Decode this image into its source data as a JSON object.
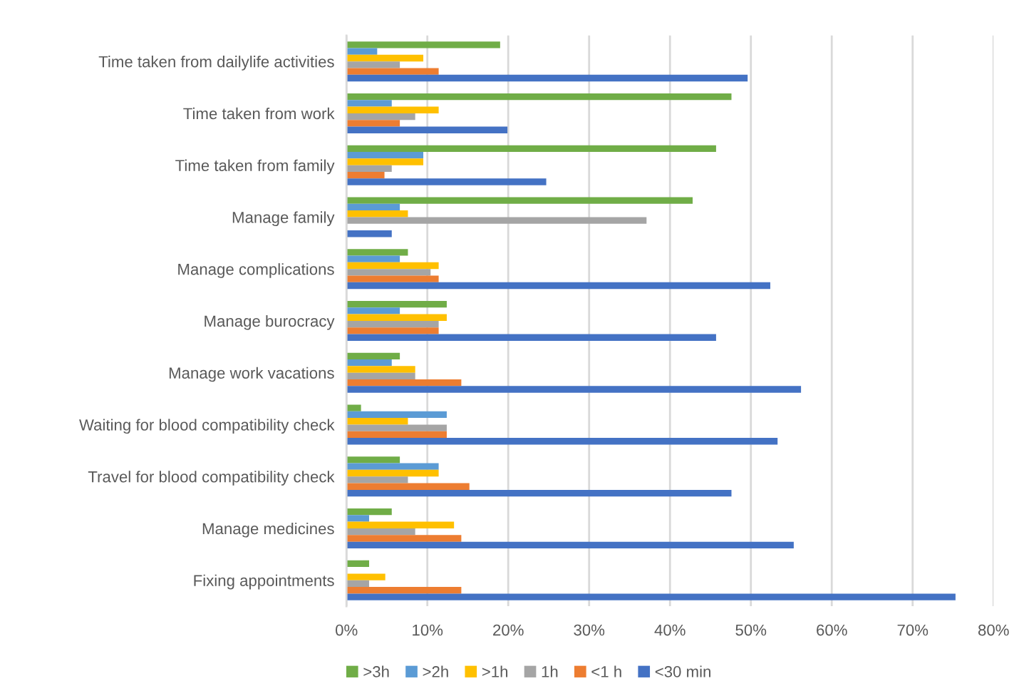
{
  "chart_data": {
    "type": "bar",
    "orientation": "horizontal",
    "categories": [
      "Time taken from dailylife activities",
      "Time taken from work",
      "Time taken from family",
      "Manage family",
      "Manage complications",
      "Manage burocracy",
      "Manage work vacations",
      "Waiting for blood compatibility check",
      "Travel for blood compatibility check",
      "Manage medicines",
      "Fixing appointments"
    ],
    "series": [
      {
        "name": ">3h",
        "color": "#70ad47",
        "values": [
          19.0,
          47.6,
          45.7,
          42.8,
          7.6,
          12.4,
          6.6,
          1.8,
          6.6,
          5.6,
          2.8
        ]
      },
      {
        "name": ">2h",
        "color": "#5b9bd5",
        "values": [
          3.8,
          5.6,
          9.5,
          6.6,
          6.6,
          6.6,
          5.6,
          12.4,
          11.4,
          2.8,
          0
        ]
      },
      {
        "name": ">1h",
        "color": "#ffc000",
        "values": [
          9.5,
          11.4,
          9.5,
          7.6,
          11.4,
          12.4,
          8.5,
          7.6,
          11.4,
          13.3,
          4.8
        ]
      },
      {
        "name": "1h",
        "color": "#a5a5a5",
        "values": [
          6.6,
          8.5,
          5.6,
          37.1,
          10.4,
          11.4,
          8.5,
          12.4,
          7.6,
          8.5,
          2.8
        ]
      },
      {
        "name": "<1 h",
        "color": "#ed7d31",
        "values": [
          11.4,
          6.6,
          4.7,
          0,
          11.4,
          11.4,
          14.2,
          12.4,
          15.2,
          14.2,
          14.2
        ]
      },
      {
        "name": "<30 min",
        "color": "#4472c4",
        "values": [
          49.6,
          19.9,
          24.7,
          5.6,
          52.4,
          45.7,
          56.2,
          53.3,
          47.6,
          55.3,
          75.3
        ]
      }
    ],
    "xlim": [
      0,
      80
    ],
    "xticks": [
      {
        "value": 0,
        "label": "0%"
      },
      {
        "value": 10,
        "label": "10%"
      },
      {
        "value": 20,
        "label": "20%"
      },
      {
        "value": 30,
        "label": "30%"
      },
      {
        "value": 40,
        "label": "40%"
      },
      {
        "value": 50,
        "label": "50%"
      },
      {
        "value": 60,
        "label": "60%"
      },
      {
        "value": 70,
        "label": "70%"
      },
      {
        "value": 80,
        "label": "80%"
      }
    ],
    "grid": "x",
    "legend": "bottom"
  }
}
